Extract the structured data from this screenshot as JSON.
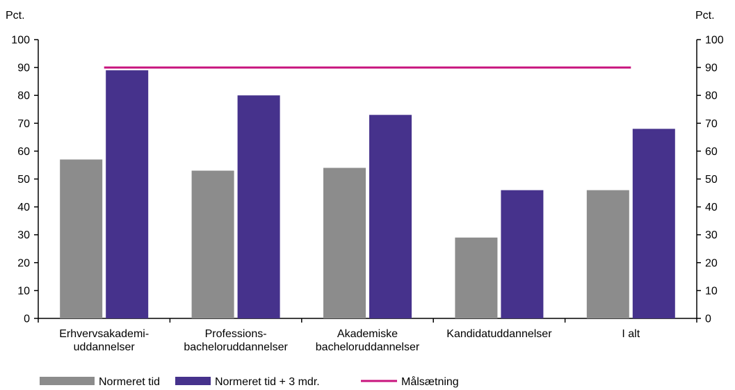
{
  "chart_data": {
    "type": "bar",
    "y_unit_left": "Pct.",
    "y_unit_right": "Pct.",
    "ylim": [
      0,
      100
    ],
    "yticks": [
      0,
      10,
      20,
      30,
      40,
      50,
      60,
      70,
      80,
      90,
      100
    ],
    "categories": [
      [
        "Erhvervsakademi-",
        "uddannelser"
      ],
      [
        "Professions-",
        "bacheloruddannelser"
      ],
      [
        "Akademiske",
        "bacheloruddannelser"
      ],
      [
        "Kandidatuddannelser"
      ],
      [
        "I alt"
      ]
    ],
    "series": [
      {
        "name": "Normeret tid",
        "color": "#8c8c8c",
        "values": [
          57,
          53,
          54,
          29,
          46
        ]
      },
      {
        "name": "Normeret tid + 3 mdr.",
        "color": "#46328c",
        "values": [
          89,
          80,
          73,
          46,
          68
        ]
      }
    ],
    "target_line": {
      "name": "Målsætning",
      "color": "#c8147d",
      "value": 90
    },
    "grid": false,
    "legend_position": "bottom"
  }
}
